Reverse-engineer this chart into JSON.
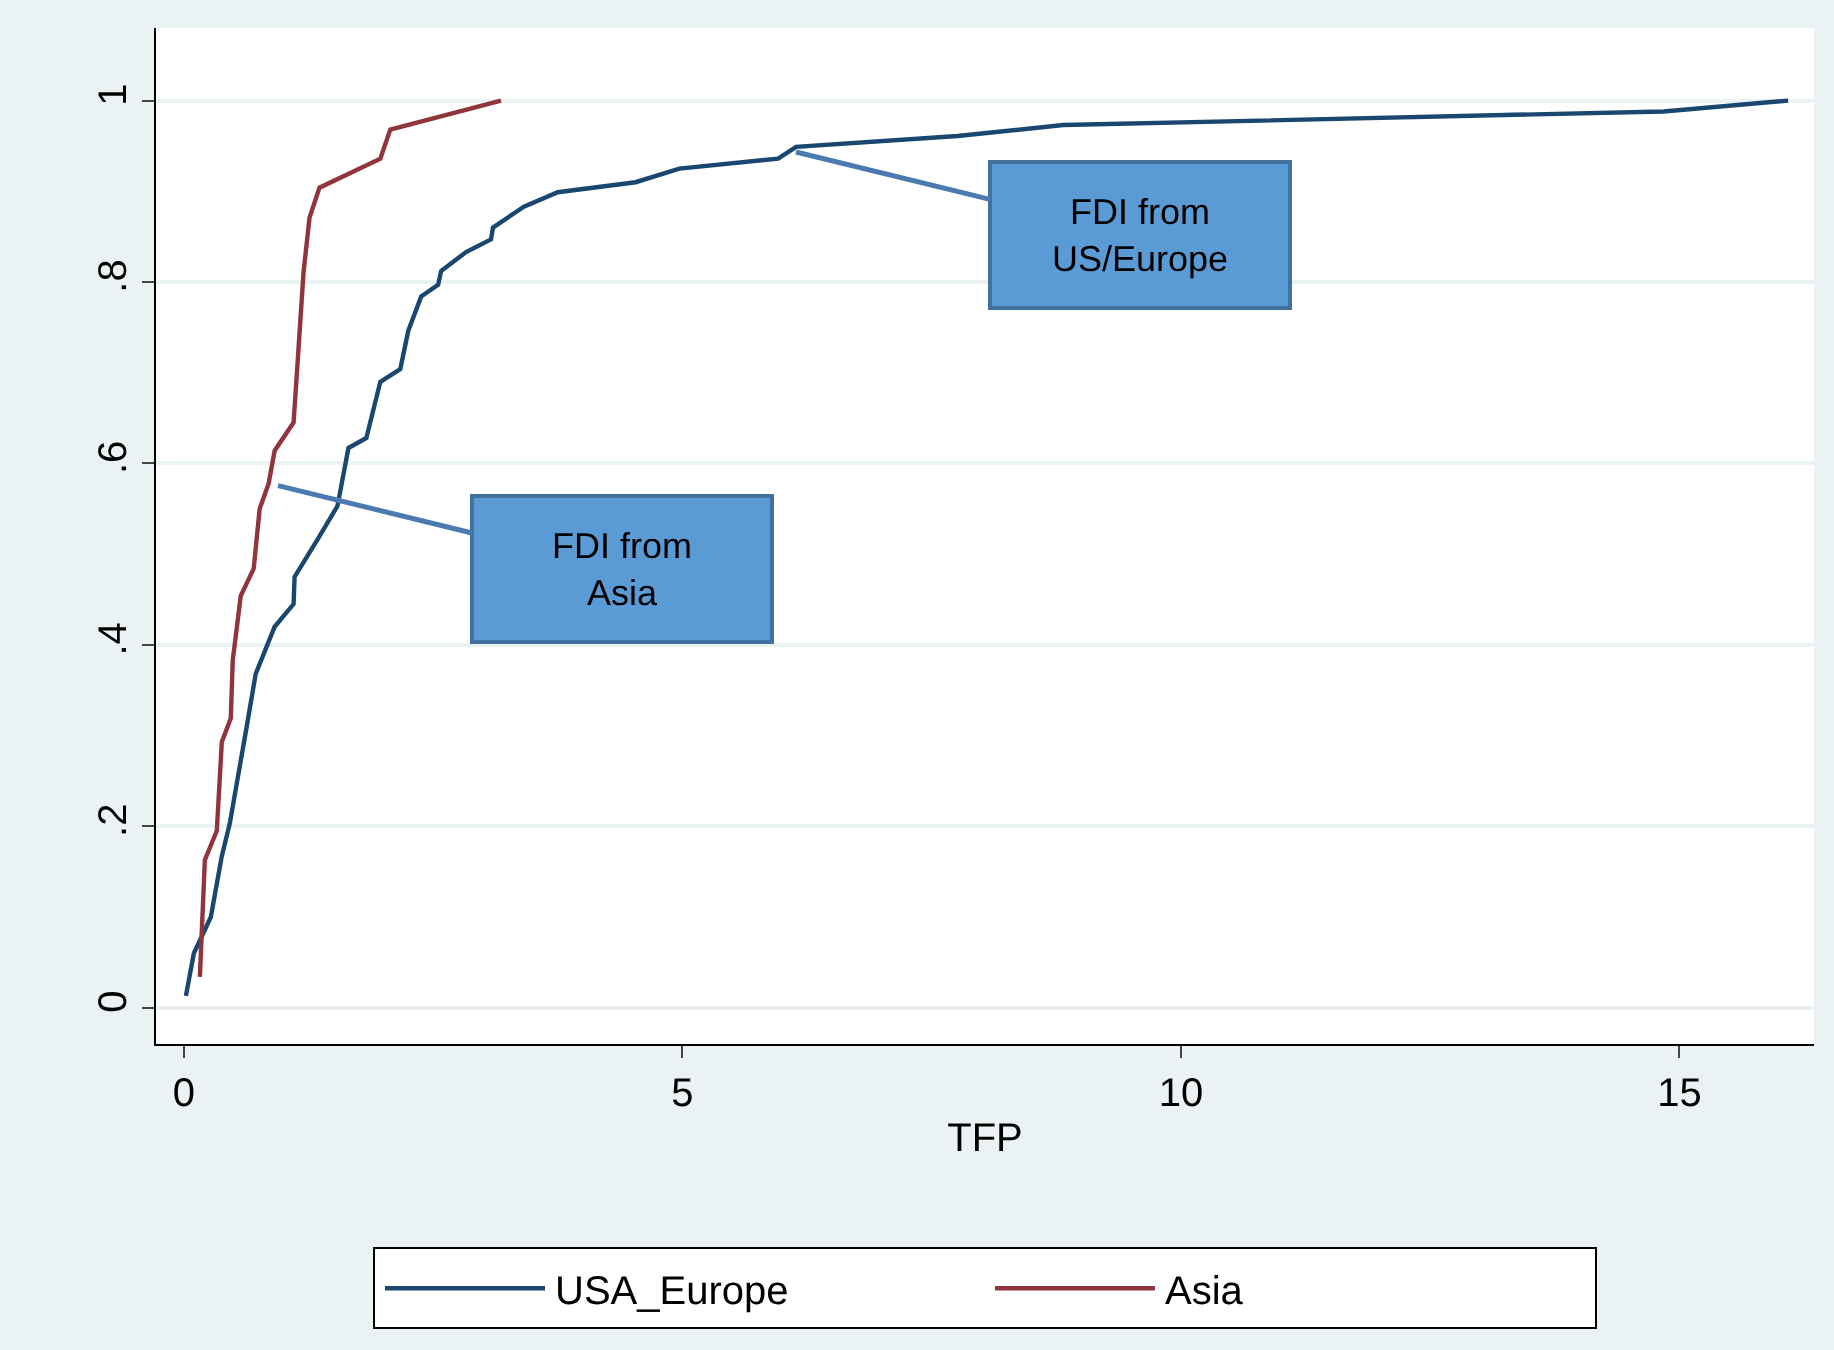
{
  "chart_data": {
    "type": "line",
    "xlabel": "TFP",
    "xlim": [
      -0.28,
      16.35
    ],
    "ylim": [
      -0.04,
      1.08
    ],
    "xticks": [
      0,
      5,
      10,
      15
    ],
    "yticks": [
      0,
      {
        "value": 0.2,
        "label": ".2"
      },
      {
        "value": 0.4,
        "label": ".4"
      },
      {
        "value": 0.6,
        "label": ".6"
      },
      {
        "value": 0.8,
        "label": ".8"
      },
      1
    ],
    "grid": "y",
    "legend": "bottom",
    "line_style": "solid",
    "marker": "none",
    "series": [
      {
        "name": "USA_Europe",
        "color": "#1a476f",
        "x": [
          0.02,
          0.1,
          0.27,
          0.38,
          0.46,
          0.63,
          0.72,
          0.91,
          1.1,
          1.11,
          1.35,
          1.54,
          1.65,
          1.83,
          1.97,
          2.17,
          2.25,
          2.38,
          2.55,
          2.58,
          2.83,
          3.08,
          3.1,
          3.41,
          3.75,
          4.53,
          4.97,
          5.96,
          6.14,
          7.76,
          8.82,
          14.84,
          16.09
        ],
        "values": [
          0.013,
          0.06,
          0.1,
          0.167,
          0.203,
          0.31,
          0.368,
          0.42,
          0.445,
          0.475,
          0.518,
          0.553,
          0.617,
          0.628,
          0.69,
          0.704,
          0.746,
          0.784,
          0.797,
          0.812,
          0.833,
          0.847,
          0.86,
          0.883,
          0.899,
          0.91,
          0.925,
          0.936,
          0.949,
          0.961,
          0.973,
          0.988,
          1.0
        ]
      },
      {
        "name": "Asia",
        "color": "#90353b",
        "x": [
          0.16,
          0.21,
          0.33,
          0.38,
          0.47,
          0.49,
          0.57,
          0.7,
          0.76,
          0.85,
          0.91,
          1.1,
          1.14,
          1.2,
          1.26,
          1.36,
          1.97,
          2.07,
          3.18
        ],
        "values": [
          0.034,
          0.163,
          0.195,
          0.293,
          0.319,
          0.383,
          0.454,
          0.484,
          0.55,
          0.578,
          0.614,
          0.645,
          0.711,
          0.811,
          0.871,
          0.904,
          0.936,
          0.968,
          1.0
        ]
      }
    ],
    "annotations": [
      "FDI from\nAsia",
      "FDI from\nUS/Europe"
    ]
  }
}
